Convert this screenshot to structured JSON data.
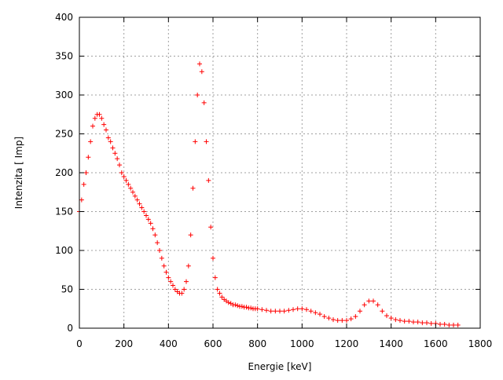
{
  "chart_data": {
    "type": "scatter",
    "title": "",
    "xlabel": "Energie [keV]",
    "ylabel": "Intenzita [ Imp]",
    "xlim": [
      0,
      1800
    ],
    "ylim": [
      0,
      400
    ],
    "xticks": [
      0,
      200,
      400,
      600,
      800,
      1000,
      1200,
      1400,
      1600,
      1800
    ],
    "yticks": [
      0,
      50,
      100,
      150,
      200,
      250,
      300,
      350,
      400
    ],
    "grid": true,
    "marker": "+",
    "color": "#ff0000",
    "x": [
      0,
      10,
      20,
      30,
      40,
      50,
      60,
      70,
      80,
      90,
      100,
      110,
      120,
      130,
      140,
      150,
      160,
      170,
      180,
      190,
      200,
      210,
      220,
      230,
      240,
      250,
      260,
      270,
      280,
      290,
      300,
      310,
      320,
      330,
      340,
      350,
      360,
      370,
      380,
      390,
      400,
      410,
      420,
      430,
      440,
      450,
      460,
      470,
      480,
      490,
      500,
      510,
      520,
      530,
      540,
      550,
      560,
      570,
      580,
      590,
      600,
      610,
      620,
      630,
      640,
      650,
      660,
      670,
      680,
      690,
      700,
      710,
      720,
      730,
      740,
      750,
      760,
      770,
      780,
      790,
      800,
      820,
      840,
      860,
      880,
      900,
      920,
      940,
      960,
      980,
      1000,
      1020,
      1040,
      1060,
      1080,
      1100,
      1120,
      1140,
      1160,
      1180,
      1200,
      1220,
      1240,
      1260,
      1280,
      1300,
      1320,
      1340,
      1360,
      1380,
      1400,
      1420,
      1440,
      1460,
      1480,
      1500,
      1520,
      1540,
      1560,
      1580,
      1600,
      1620,
      1640,
      1660,
      1680,
      1700
    ],
    "y": [
      150,
      165,
      185,
      200,
      220,
      240,
      260,
      270,
      275,
      275,
      270,
      262,
      255,
      245,
      240,
      232,
      225,
      218,
      210,
      200,
      195,
      190,
      185,
      180,
      175,
      170,
      165,
      160,
      155,
      150,
      145,
      140,
      135,
      128,
      120,
      110,
      100,
      90,
      80,
      72,
      65,
      60,
      55,
      50,
      47,
      45,
      45,
      50,
      60,
      80,
      120,
      180,
      240,
      300,
      340,
      330,
      290,
      240,
      190,
      130,
      90,
      65,
      50,
      45,
      40,
      37,
      35,
      33,
      32,
      30,
      30,
      29,
      28,
      28,
      27,
      27,
      26,
      26,
      25,
      25,
      25,
      24,
      23,
      22,
      22,
      22,
      22,
      23,
      24,
      25,
      25,
      24,
      22,
      20,
      18,
      15,
      13,
      11,
      10,
      10,
      10,
      12,
      15,
      22,
      30,
      35,
      35,
      30,
      22,
      16,
      13,
      11,
      10,
      9,
      9,
      8,
      8,
      7,
      7,
      6,
      6,
      5,
      5,
      4,
      4,
      4
    ]
  }
}
